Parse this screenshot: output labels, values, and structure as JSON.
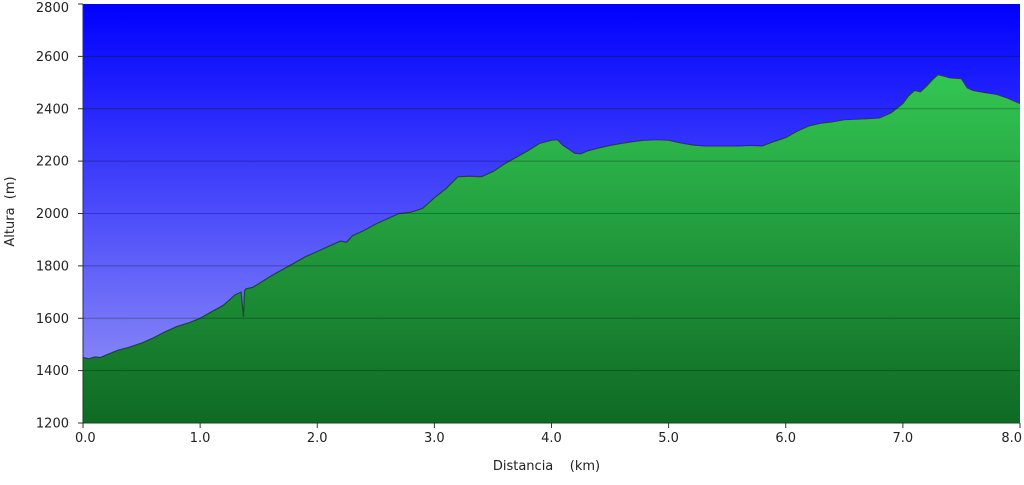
{
  "chart_data": {
    "type": "area",
    "xlabel": "Distancia    (km)",
    "ylabel": "Altura  (m)",
    "xlim": [
      0,
      8
    ],
    "ylim": [
      1200,
      2800
    ],
    "xticks": [
      "0.0",
      "1.0",
      "2.0",
      "3.0",
      "4.0",
      "5.0",
      "6.0",
      "7.0",
      "8.0"
    ],
    "yticks": [
      "1200",
      "1400",
      "1600",
      "1800",
      "2000",
      "2200",
      "2400",
      "2600",
      "2800"
    ],
    "grid": "horizontal",
    "colors": {
      "sky_top": "#0000ff",
      "sky_bottom": "#9a9af5",
      "fill_top": "#33c653",
      "fill_bottom": "#0f6a24",
      "outline": "#1b4a2a"
    },
    "series": [
      {
        "x": [
          0.0,
          0.05,
          0.1,
          0.15,
          0.2,
          0.3,
          0.4,
          0.5,
          0.6,
          0.7,
          0.8,
          0.9,
          1.0,
          1.1,
          1.2,
          1.3,
          1.35,
          1.37,
          1.38,
          1.39,
          1.45,
          1.5,
          1.6,
          1.7,
          1.8,
          1.9,
          2.0,
          2.1,
          2.2,
          2.25,
          2.3,
          2.4,
          2.5,
          2.6,
          2.7,
          2.8,
          2.9,
          3.0,
          3.1,
          3.2,
          3.3,
          3.4,
          3.5,
          3.6,
          3.7,
          3.8,
          3.9,
          4.0,
          4.05,
          4.1,
          4.15,
          4.2,
          4.25,
          4.3,
          4.4,
          4.5,
          4.6,
          4.7,
          4.8,
          4.9,
          5.0,
          5.1,
          5.2,
          5.3,
          5.4,
          5.5,
          5.6,
          5.7,
          5.8,
          5.9,
          6.0,
          6.1,
          6.2,
          6.3,
          6.4,
          6.5,
          6.6,
          6.7,
          6.8,
          6.9,
          7.0,
          7.05,
          7.1,
          7.15,
          7.2,
          7.25,
          7.3,
          7.35,
          7.4,
          7.5,
          7.55,
          7.6,
          7.7,
          7.8,
          7.9,
          8.0
        ],
        "y": [
          1450,
          1445,
          1452,
          1450,
          1460,
          1478,
          1490,
          1505,
          1525,
          1548,
          1568,
          1582,
          1600,
          1625,
          1650,
          1690,
          1700,
          1605,
          1705,
          1712,
          1718,
          1732,
          1760,
          1785,
          1810,
          1835,
          1855,
          1875,
          1895,
          1890,
          1915,
          1935,
          1960,
          1980,
          2000,
          2005,
          2020,
          2060,
          2095,
          2140,
          2143,
          2140,
          2160,
          2190,
          2215,
          2240,
          2268,
          2280,
          2282,
          2260,
          2245,
          2230,
          2228,
          2238,
          2250,
          2260,
          2268,
          2275,
          2280,
          2282,
          2280,
          2270,
          2262,
          2258,
          2258,
          2258,
          2258,
          2260,
          2258,
          2275,
          2290,
          2315,
          2335,
          2345,
          2350,
          2358,
          2360,
          2362,
          2365,
          2385,
          2420,
          2450,
          2470,
          2465,
          2485,
          2510,
          2530,
          2525,
          2518,
          2515,
          2480,
          2470,
          2462,
          2455,
          2440,
          2420
        ]
      }
    ]
  }
}
